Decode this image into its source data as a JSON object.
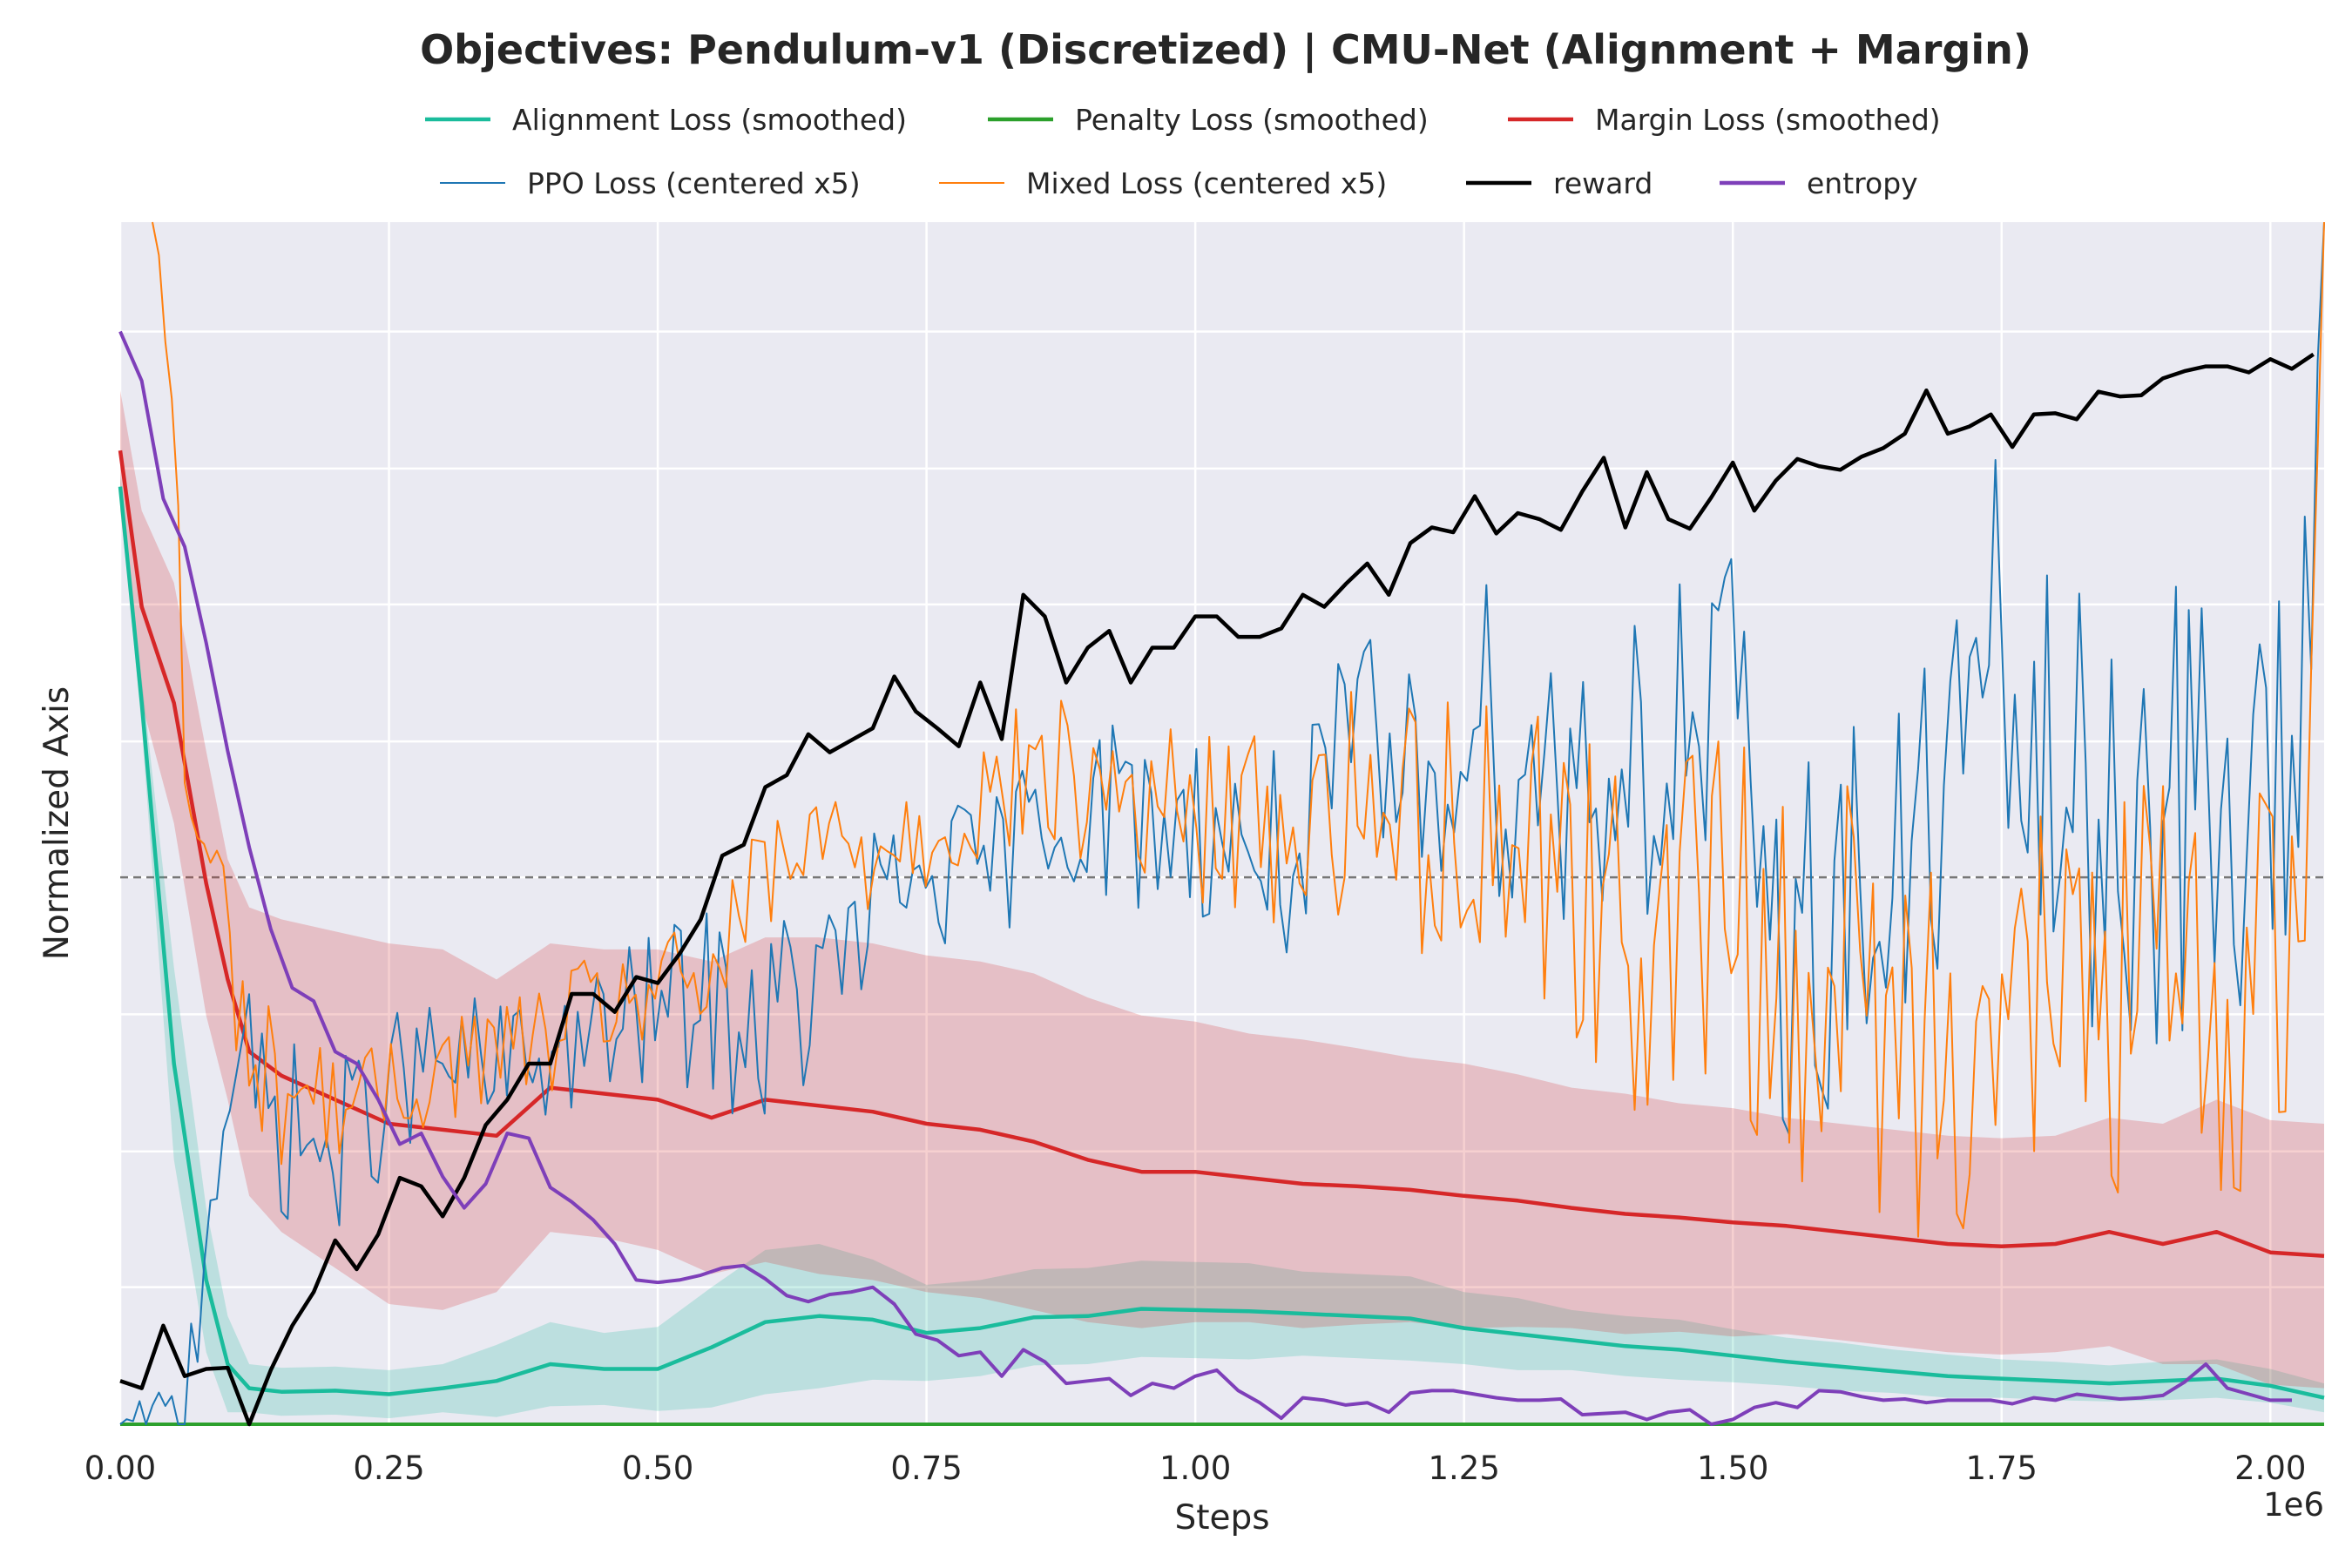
{
  "chart_data": {
    "type": "line",
    "title": "Objectives: Pendulum-v1 (Discretized) | CMU-Net (Alignment + Margin)",
    "xlabel": "Steps",
    "ylabel": "Normalized Axis",
    "x_offset_label": "1e6",
    "xlim": [
      0,
      2.05
    ],
    "ylim": [
      0,
      1
    ],
    "x_ticks": [
      "0.00",
      "0.25",
      "0.50",
      "0.75",
      "1.00",
      "1.25",
      "1.50",
      "1.75",
      "2.00"
    ],
    "x_tick_values": [
      0,
      0.25,
      0.5,
      0.75,
      1.0,
      1.25,
      1.5,
      1.75,
      2.0
    ],
    "y_gridlines": [
      0.114,
      0.227,
      0.341,
      0.455,
      0.568,
      0.682,
      0.795,
      0.909
    ],
    "zero_reference_line": 0.455,
    "grid": true,
    "legend_placement": "top-center",
    "background_color": "#eaeaf2",
    "series": [
      {
        "name": "Alignment Loss (smoothed)",
        "color": "#1abc9c",
        "kind": "band-line",
        "x": [
          0,
          0.02,
          0.05,
          0.08,
          0.1,
          0.12,
          0.15,
          0.2,
          0.25,
          0.3,
          0.35,
          0.4,
          0.45,
          0.5,
          0.55,
          0.6,
          0.65,
          0.7,
          0.75,
          0.8,
          0.85,
          0.9,
          0.95,
          1.0,
          1.05,
          1.1,
          1.15,
          1.2,
          1.25,
          1.3,
          1.35,
          1.4,
          1.45,
          1.5,
          1.55,
          1.6,
          1.65,
          1.7,
          1.75,
          1.8,
          1.85,
          1.9,
          1.95,
          2.0,
          2.05
        ],
        "values": [
          0.78,
          0.6,
          0.3,
          0.12,
          0.05,
          0.03,
          0.027,
          0.028,
          0.025,
          0.03,
          0.036,
          0.05,
          0.046,
          0.046,
          0.064,
          0.085,
          0.09,
          0.087,
          0.076,
          0.08,
          0.089,
          0.09,
          0.096,
          0.095,
          0.094,
          0.092,
          0.09,
          0.088,
          0.08,
          0.075,
          0.07,
          0.065,
          0.062,
          0.057,
          0.052,
          0.048,
          0.044,
          0.04,
          0.038,
          0.036,
          0.034,
          0.036,
          0.038,
          0.032,
          0.022
        ],
        "band": [
          0.01,
          0.02,
          0.08,
          0.06,
          0.04,
          0.02,
          0.02,
          0.02,
          0.02,
          0.02,
          0.03,
          0.035,
          0.03,
          0.035,
          0.05,
          0.06,
          0.06,
          0.05,
          0.04,
          0.04,
          0.04,
          0.04,
          0.04,
          0.04,
          0.04,
          0.035,
          0.035,
          0.035,
          0.03,
          0.03,
          0.025,
          0.025,
          0.025,
          0.022,
          0.02,
          0.02,
          0.018,
          0.018,
          0.016,
          0.016,
          0.015,
          0.016,
          0.016,
          0.014,
          0.012
        ]
      },
      {
        "name": "Penalty Loss (smoothed)",
        "color": "#2ca02c",
        "kind": "line",
        "x": [
          0,
          2.05
        ],
        "values": [
          0,
          0
        ]
      },
      {
        "name": "Margin Loss (smoothed)",
        "color": "#d62728",
        "kind": "band-line",
        "x": [
          0,
          0.02,
          0.05,
          0.08,
          0.1,
          0.12,
          0.15,
          0.2,
          0.25,
          0.3,
          0.35,
          0.4,
          0.45,
          0.5,
          0.55,
          0.6,
          0.65,
          0.7,
          0.75,
          0.8,
          0.85,
          0.9,
          0.95,
          1.0,
          1.05,
          1.1,
          1.15,
          1.2,
          1.25,
          1.3,
          1.35,
          1.4,
          1.45,
          1.5,
          1.55,
          1.6,
          1.65,
          1.7,
          1.75,
          1.8,
          1.85,
          1.9,
          1.95,
          2.0,
          2.05
        ],
        "values": [
          0.81,
          0.68,
          0.6,
          0.45,
          0.37,
          0.31,
          0.29,
          0.27,
          0.25,
          0.245,
          0.24,
          0.28,
          0.275,
          0.27,
          0.255,
          0.27,
          0.265,
          0.26,
          0.25,
          0.245,
          0.235,
          0.22,
          0.21,
          0.21,
          0.205,
          0.2,
          0.198,
          0.195,
          0.19,
          0.186,
          0.18,
          0.175,
          0.172,
          0.168,
          0.165,
          0.16,
          0.155,
          0.15,
          0.148,
          0.15,
          0.16,
          0.15,
          0.16,
          0.143,
          0.14
        ],
        "band": [
          0.05,
          0.08,
          0.1,
          0.11,
          0.1,
          0.12,
          0.13,
          0.14,
          0.15,
          0.15,
          0.13,
          0.12,
          0.12,
          0.125,
          0.13,
          0.135,
          0.14,
          0.14,
          0.14,
          0.14,
          0.14,
          0.135,
          0.13,
          0.125,
          0.12,
          0.12,
          0.115,
          0.11,
          0.11,
          0.105,
          0.1,
          0.1,
          0.095,
          0.095,
          0.09,
          0.09,
          0.09,
          0.09,
          0.09,
          0.09,
          0.095,
          0.1,
          0.11,
          0.11,
          0.11
        ]
      },
      {
        "name": "PPO Loss (centered x5)",
        "color": "#1f77b4",
        "kind": "noisy",
        "x": [
          0,
          0.03,
          0.06,
          0.08,
          0.1,
          0.12,
          0.15,
          0.2,
          0.25,
          0.3,
          0.35,
          0.4,
          0.45,
          0.5,
          0.55,
          0.6,
          0.65,
          0.7,
          0.75,
          0.8,
          0.85,
          0.9,
          0.95,
          1.0,
          1.05,
          1.1,
          1.15,
          1.2,
          1.25,
          1.3,
          1.35,
          1.4,
          1.45,
          1.5,
          1.55,
          1.6,
          1.65,
          1.7,
          1.75,
          1.8,
          1.85,
          1.9,
          1.95,
          2.0,
          2.03,
          2.05
        ],
        "values": [
          0.0,
          0.0,
          0.01,
          0.18,
          0.3,
          0.28,
          0.25,
          0.22,
          0.28,
          0.3,
          0.29,
          0.31,
          0.32,
          0.35,
          0.35,
          0.33,
          0.36,
          0.42,
          0.46,
          0.45,
          0.5,
          0.52,
          0.5,
          0.5,
          0.48,
          0.47,
          0.56,
          0.52,
          0.6,
          0.55,
          0.54,
          0.56,
          0.56,
          0.57,
          0.38,
          0.44,
          0.42,
          0.55,
          0.62,
          0.5,
          0.5,
          0.52,
          0.48,
          0.51,
          0.56,
          1.0
        ],
        "noise": [
          0.0,
          0.02,
          0.02,
          0.06,
          0.05,
          0.05,
          0.05,
          0.05,
          0.04,
          0.04,
          0.04,
          0.04,
          0.04,
          0.04,
          0.05,
          0.06,
          0.05,
          0.05,
          0.04,
          0.04,
          0.04,
          0.05,
          0.05,
          0.05,
          0.05,
          0.06,
          0.07,
          0.07,
          0.08,
          0.08,
          0.09,
          0.09,
          0.1,
          0.1,
          0.1,
          0.11,
          0.11,
          0.11,
          0.12,
          0.12,
          0.12,
          0.13,
          0.12,
          0.12,
          0.12,
          0.0
        ]
      },
      {
        "name": "Mixed Loss (centered x5)",
        "color": "#ff7f0e",
        "kind": "noisy",
        "x": [
          0.03,
          0.05,
          0.06,
          0.08,
          0.1,
          0.12,
          0.15,
          0.2,
          0.25,
          0.3,
          0.35,
          0.4,
          0.45,
          0.5,
          0.55,
          0.6,
          0.65,
          0.7,
          0.75,
          0.8,
          0.85,
          0.9,
          0.95,
          1.0,
          1.05,
          1.1,
          1.15,
          1.2,
          1.25,
          1.3,
          1.35,
          1.4,
          1.45,
          1.5,
          1.55,
          1.6,
          1.65,
          1.7,
          1.75,
          1.8,
          1.85,
          1.9,
          1.95,
          2.0,
          2.03,
          2.05
        ],
        "values": [
          1.0,
          0.85,
          0.55,
          0.45,
          0.42,
          0.3,
          0.28,
          0.27,
          0.27,
          0.3,
          0.31,
          0.32,
          0.35,
          0.36,
          0.37,
          0.45,
          0.48,
          0.48,
          0.5,
          0.52,
          0.54,
          0.53,
          0.52,
          0.5,
          0.5,
          0.5,
          0.52,
          0.5,
          0.5,
          0.5,
          0.46,
          0.4,
          0.42,
          0.44,
          0.35,
          0.38,
          0.32,
          0.33,
          0.36,
          0.34,
          0.37,
          0.36,
          0.34,
          0.38,
          0.4,
          1.0
        ],
        "noise": [
          0.0,
          0.05,
          0.05,
          0.05,
          0.05,
          0.04,
          0.04,
          0.03,
          0.03,
          0.03,
          0.03,
          0.03,
          0.03,
          0.03,
          0.03,
          0.04,
          0.04,
          0.04,
          0.04,
          0.04,
          0.04,
          0.05,
          0.05,
          0.05,
          0.05,
          0.06,
          0.06,
          0.07,
          0.07,
          0.08,
          0.09,
          0.09,
          0.09,
          0.1,
          0.1,
          0.1,
          0.11,
          0.11,
          0.11,
          0.11,
          0.12,
          0.12,
          0.11,
          0.11,
          0.1,
          0.0
        ]
      },
      {
        "name": "reward",
        "color": "#000000",
        "kind": "line",
        "x": [
          0,
          0.02,
          0.04,
          0.06,
          0.08,
          0.1,
          0.12,
          0.14,
          0.16,
          0.18,
          0.2,
          0.22,
          0.24,
          0.26,
          0.28,
          0.3,
          0.32,
          0.34,
          0.36,
          0.38,
          0.4,
          0.42,
          0.44,
          0.46,
          0.48,
          0.5,
          0.52,
          0.54,
          0.56,
          0.58,
          0.6,
          0.62,
          0.64,
          0.66,
          0.68,
          0.7,
          0.72,
          0.74,
          0.76,
          0.78,
          0.8,
          0.82,
          0.84,
          0.86,
          0.88,
          0.9,
          0.92,
          0.94,
          0.96,
          0.98,
          1.0,
          1.02,
          1.04,
          1.06,
          1.08,
          1.1,
          1.12,
          1.14,
          1.16,
          1.18,
          1.2,
          1.22,
          1.24,
          1.26,
          1.28,
          1.3,
          1.32,
          1.34,
          1.36,
          1.38,
          1.4,
          1.42,
          1.44,
          1.46,
          1.48,
          1.5,
          1.52,
          1.54,
          1.56,
          1.58,
          1.6,
          1.62,
          1.64,
          1.66,
          1.68,
          1.7,
          1.72,
          1.74,
          1.76,
          1.78,
          1.8,
          1.82,
          1.84,
          1.86,
          1.88,
          1.9,
          1.92,
          1.94,
          1.96,
          1.98,
          2.0,
          2.02,
          2.04
        ],
        "values": [
          0.036,
          0.03,
          0.082,
          0.04,
          0.046,
          0.047,
          0.0,
          0.045,
          0.082,
          0.11,
          0.153,
          0.129,
          0.158,
          0.205,
          0.198,
          0.173,
          0.205,
          0.249,
          0.27,
          0.3,
          0.3,
          0.358,
          0.358,
          0.343,
          0.372,
          0.367,
          0.391,
          0.42,
          0.473,
          0.482,
          0.53,
          0.54,
          0.574,
          0.559,
          0.569,
          0.579,
          0.622,
          0.593,
          0.579,
          0.564,
          0.617,
          0.57,
          0.69,
          0.672,
          0.617,
          0.646,
          0.66,
          0.617,
          0.646,
          0.646,
          0.672,
          0.672,
          0.655,
          0.655,
          0.662,
          0.69,
          0.68,
          0.699,
          0.716,
          0.69,
          0.733,
          0.746,
          0.742,
          0.772,
          0.741,
          0.758,
          0.753,
          0.744,
          0.776,
          0.804,
          0.746,
          0.792,
          0.753,
          0.745,
          0.771,
          0.8,
          0.76,
          0.785,
          0.803,
          0.797,
          0.794,
          0.805,
          0.812,
          0.824,
          0.86,
          0.824,
          0.83,
          0.84,
          0.813,
          0.84,
          0.841,
          0.836,
          0.859,
          0.855,
          0.856,
          0.87,
          0.876,
          0.88,
          0.88,
          0.875,
          0.886,
          0.878,
          0.89
        ],
        "width": 4.5
      },
      {
        "name": "entropy",
        "color": "#7e3fb9",
        "kind": "line",
        "x": [
          0,
          0.02,
          0.04,
          0.06,
          0.08,
          0.1,
          0.12,
          0.14,
          0.16,
          0.18,
          0.2,
          0.22,
          0.24,
          0.26,
          0.28,
          0.3,
          0.32,
          0.34,
          0.36,
          0.38,
          0.4,
          0.42,
          0.44,
          0.46,
          0.48,
          0.5,
          0.52,
          0.54,
          0.56,
          0.58,
          0.6,
          0.62,
          0.64,
          0.66,
          0.68,
          0.7,
          0.72,
          0.74,
          0.76,
          0.78,
          0.8,
          0.82,
          0.84,
          0.86,
          0.88,
          0.9,
          0.92,
          0.94,
          0.96,
          0.98,
          1.0,
          1.02,
          1.04,
          1.06,
          1.08,
          1.1,
          1.12,
          1.14,
          1.16,
          1.18,
          1.2,
          1.22,
          1.24,
          1.26,
          1.28,
          1.3,
          1.32,
          1.34,
          1.36,
          1.38,
          1.4,
          1.42,
          1.44,
          1.46,
          1.48,
          1.5,
          1.52,
          1.54,
          1.56,
          1.58,
          1.6,
          1.62,
          1.64,
          1.66,
          1.68,
          1.7,
          1.72,
          1.74,
          1.76,
          1.78,
          1.8,
          1.82,
          1.84,
          1.86,
          1.88,
          1.9,
          1.92,
          1.94,
          1.96,
          1.98,
          2.0,
          2.02
        ],
        "values": [
          0.909,
          0.868,
          0.77,
          0.73,
          0.65,
          0.56,
          0.48,
          0.412,
          0.363,
          0.352,
          0.31,
          0.3,
          0.27,
          0.233,
          0.242,
          0.206,
          0.18,
          0.2,
          0.242,
          0.238,
          0.197,
          0.185,
          0.17,
          0.15,
          0.12,
          0.118,
          0.12,
          0.124,
          0.13,
          0.132,
          0.121,
          0.107,
          0.102,
          0.108,
          0.11,
          0.114,
          0.1,
          0.075,
          0.07,
          0.057,
          0.06,
          0.04,
          0.062,
          0.052,
          0.034,
          0.036,
          0.038,
          0.024,
          0.034,
          0.03,
          0.04,
          0.045,
          0.028,
          0.018,
          0.005,
          0.022,
          0.02,
          0.016,
          0.018,
          0.01,
          0.026,
          0.028,
          0.028,
          0.025,
          0.022,
          0.02,
          0.02,
          0.021,
          0.008,
          0.009,
          0.01,
          0.004,
          0.01,
          0.012,
          0.0,
          0.004,
          0.014,
          0.018,
          0.014,
          0.028,
          0.027,
          0.023,
          0.02,
          0.021,
          0.018,
          0.02,
          0.02,
          0.02,
          0.017,
          0.022,
          0.02,
          0.025,
          0.023,
          0.021,
          0.022,
          0.024,
          0.035,
          0.05,
          0.03,
          0.025,
          0.02,
          0.02
        ]
      }
    ]
  }
}
